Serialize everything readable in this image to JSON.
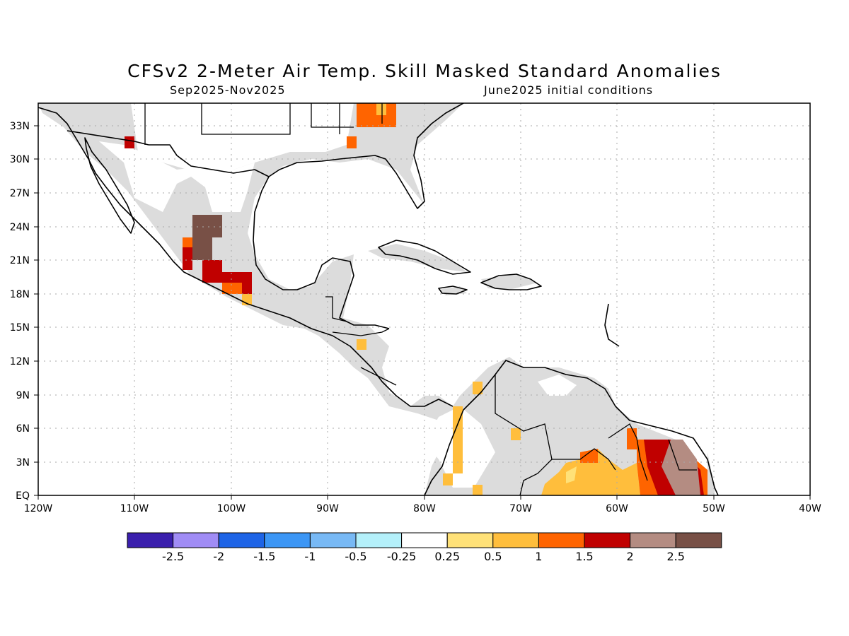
{
  "title": "CFSv2 2-Meter Air Temp. Skill Masked Standard Anomalies",
  "subtitle_left": "Sep2025-Nov2025",
  "subtitle_right": "June2025 initial conditions",
  "lat_labels": [
    "EQ",
    "3N",
    "6N",
    "9N",
    "12N",
    "15N",
    "18N",
    "21N",
    "24N",
    "27N",
    "30N",
    "33N"
  ],
  "lon_labels": [
    "120W",
    "110W",
    "100W",
    "90W",
    "80W",
    "70W",
    "60W",
    "50W",
    "40W"
  ],
  "colorbar": {
    "colors": [
      "#3a1fad",
      "#a08cf5",
      "#1e64e6",
      "#3c96f5",
      "#78b9f5",
      "#b4f0fa",
      "#ffffff",
      "#ffe178",
      "#ffbe3c",
      "#ff6400",
      "#c00000",
      "#b48c82",
      "#785046"
    ],
    "labels": [
      "-2.5",
      "-2",
      "-1.5",
      "-1",
      "-0.5",
      "-0.25",
      "0.25",
      "0.5",
      "1",
      "1.5",
      "2",
      "2.5"
    ]
  },
  "colors": {
    "land_masked": "#dcdcdc",
    "coast": "#000000",
    "grid": "#aaaaaa"
  }
}
